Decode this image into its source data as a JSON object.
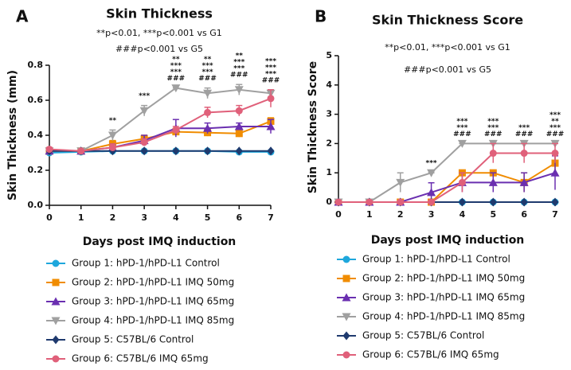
{
  "chart_data": [
    {
      "type": "line",
      "panel_label": "A",
      "title": "Skin Thickness",
      "subtitle_lines": [
        "**p<0.01, ***p<0.001 vs G1",
        "###p<0.001 vs G5"
      ],
      "xlabel": "Days post IMQ induction",
      "ylabel": "Skin Thickness (mm)",
      "x": [
        0,
        1,
        2,
        3,
        4,
        5,
        6,
        7
      ],
      "xlim": [
        0,
        7
      ],
      "xticks": [
        0,
        1,
        2,
        3,
        4,
        5,
        6,
        7
      ],
      "ylim": [
        0,
        0.8
      ],
      "yticks": [
        {
          "value": 0,
          "label": "0.0"
        },
        0.2,
        0.4,
        0.6,
        0.8
      ],
      "series": [
        {
          "name": "Group 1: hPD-1/hPD-L1 Control",
          "color": "#1ea7dc",
          "marker": "circle",
          "values": [
            0.3,
            0.305,
            0.31,
            0.31,
            0.31,
            0.31,
            0.305,
            0.305
          ],
          "errors": [
            0,
            0,
            0,
            0,
            0,
            0,
            0,
            0
          ]
        },
        {
          "name": "Group 2: hPD-1/hPD-L1 IMQ 50mg",
          "color": "#f08c00",
          "marker": "square",
          "values": [
            0.31,
            0.31,
            0.35,
            0.38,
            0.42,
            0.415,
            0.41,
            0.48
          ],
          "errors": [
            0,
            0,
            0.02,
            0.02,
            0.02,
            0.02,
            0.02,
            0.02
          ]
        },
        {
          "name": "Group 3: hPD-1/hPD-L1 IMQ 65mg",
          "color": "#6a2fb0",
          "marker": "triangle",
          "values": [
            0.31,
            0.31,
            0.33,
            0.37,
            0.44,
            0.44,
            0.45,
            0.45
          ],
          "errors": [
            0,
            0,
            0.02,
            0.03,
            0.05,
            0.03,
            0.02,
            0.04
          ]
        },
        {
          "name": "Group 4: hPD-1/hPD-L1 IMQ 85mg",
          "color": "#a0a0a0",
          "marker": "triangle-down",
          "values": [
            0.31,
            0.31,
            0.4,
            0.54,
            0.67,
            0.64,
            0.66,
            0.64
          ],
          "errors": [
            0,
            0,
            0.03,
            0.03,
            0,
            0.03,
            0.03,
            0.02
          ]
        },
        {
          "name": "Group 5: C57BL/6 Control",
          "color": "#1f3a6e",
          "marker": "diamond",
          "values": [
            0.31,
            0.31,
            0.31,
            0.31,
            0.31,
            0.31,
            0.31,
            0.31
          ],
          "errors": [
            0,
            0,
            0,
            0,
            0,
            0,
            0,
            0
          ]
        },
        {
          "name": "Group 6: C57BL/6 IMQ 65mg",
          "color": "#e0607a",
          "marker": "circle",
          "values": [
            0.32,
            0.31,
            0.33,
            0.36,
            0.43,
            0.53,
            0.54,
            0.61
          ],
          "errors": [
            0.01,
            0,
            0.02,
            0.02,
            0.02,
            0.03,
            0.03,
            0.05
          ]
        }
      ],
      "annotations": [
        {
          "x": 2,
          "text": "**",
          "color": "#a0a0a0"
        },
        {
          "x": 3,
          "text": "***",
          "color": "#a0a0a0"
        },
        {
          "x": 4,
          "text": "**",
          "color": "#f08c00"
        },
        {
          "x": 4,
          "text": "***",
          "color": "#6a2fb0"
        },
        {
          "x": 4,
          "text": "***",
          "color": "#a0a0a0"
        },
        {
          "x": 4,
          "text": "###",
          "color": "#e0607a"
        },
        {
          "x": 5,
          "text": "**",
          "color": "#f08c00"
        },
        {
          "x": 5,
          "text": "***",
          "color": "#6a2fb0"
        },
        {
          "x": 5,
          "text": "***",
          "color": "#a0a0a0"
        },
        {
          "x": 5,
          "text": "###",
          "color": "#e0607a"
        },
        {
          "x": 6,
          "text": "**",
          "color": "#f08c00"
        },
        {
          "x": 6,
          "text": "***",
          "color": "#6a2fb0"
        },
        {
          "x": 6,
          "text": "***",
          "color": "#a0a0a0"
        },
        {
          "x": 6,
          "text": "###",
          "color": "#e0607a"
        },
        {
          "x": 7,
          "text": "***",
          "color": "#f08c00"
        },
        {
          "x": 7,
          "text": "***",
          "color": "#6a2fb0"
        },
        {
          "x": 7,
          "text": "***",
          "color": "#a0a0a0"
        },
        {
          "x": 7,
          "text": "###",
          "color": "#e0607a"
        }
      ]
    },
    {
      "type": "line",
      "panel_label": "B",
      "title": "Skin Thickness Score",
      "subtitle_lines": [
        "**p<0.01, ***p<0.001 vs G1",
        "###p<0.001 vs G5"
      ],
      "xlabel": "Days post IMQ induction",
      "ylabel": "Skin Thickness Score",
      "x": [
        0,
        1,
        2,
        3,
        4,
        5,
        6,
        7
      ],
      "xlim": [
        0,
        7
      ],
      "xticks": [
        0,
        1,
        2,
        3,
        4,
        5,
        6,
        7
      ],
      "ylim": [
        0,
        5
      ],
      "yticks": [
        0,
        1,
        2,
        3,
        4,
        5
      ],
      "series": [
        {
          "name": "Group 1: hPD-1/hPD-L1 Control",
          "color": "#1ea7dc",
          "marker": "circle",
          "values": [
            0,
            0,
            0,
            0,
            0,
            0,
            0,
            0
          ],
          "errors": [
            0,
            0,
            0,
            0,
            0,
            0,
            0,
            0
          ]
        },
        {
          "name": "Group 2: hPD-1/hPD-L1 IMQ 50mg",
          "color": "#f08c00",
          "marker": "square",
          "values": [
            0,
            0,
            0,
            0,
            1,
            1,
            0.67,
            1.33
          ],
          "errors": [
            0,
            0,
            0,
            0,
            0,
            0,
            0.33,
            0.33
          ]
        },
        {
          "name": "Group 3: hPD-1/hPD-L1 IMQ 65mg",
          "color": "#6a2fb0",
          "marker": "triangle",
          "values": [
            0,
            0,
            0,
            0.33,
            0.67,
            0.67,
            0.67,
            1
          ],
          "errors": [
            0,
            0,
            0,
            0.33,
            0.33,
            0.33,
            0.33,
            0.58
          ]
        },
        {
          "name": "Group 4: hPD-1/hPD-L1 IMQ 85mg",
          "color": "#a0a0a0",
          "marker": "triangle-down",
          "values": [
            0,
            0,
            0.67,
            1,
            2,
            2,
            2,
            2
          ],
          "errors": [
            0,
            0,
            0.33,
            0,
            0,
            0,
            0,
            0
          ]
        },
        {
          "name": "Group 5: C57BL/6 Control",
          "color": "#1f3a6e",
          "marker": "diamond",
          "values": [
            0,
            0,
            0,
            0,
            0,
            0,
            0,
            0
          ],
          "errors": [
            0,
            0,
            0,
            0,
            0,
            0,
            0,
            0
          ]
        },
        {
          "name": "Group 6: C57BL/6 IMQ 65mg",
          "color": "#e0607a",
          "marker": "circle",
          "values": [
            0,
            0,
            0,
            0,
            0.67,
            1.67,
            1.67,
            1.67
          ],
          "errors": [
            0,
            0,
            0,
            0,
            0.33,
            0.33,
            0.33,
            0.33
          ]
        }
      ],
      "annotations": [
        {
          "x": 3,
          "text": "***",
          "color": "#a0a0a0"
        },
        {
          "x": 4,
          "text": "***",
          "color": "#f08c00"
        },
        {
          "x": 4,
          "text": "***",
          "color": "#a0a0a0"
        },
        {
          "x": 4,
          "text": "###",
          "color": "#e0607a"
        },
        {
          "x": 5,
          "text": "***",
          "color": "#f08c00"
        },
        {
          "x": 5,
          "text": "***",
          "color": "#a0a0a0"
        },
        {
          "x": 5,
          "text": "###",
          "color": "#e0607a"
        },
        {
          "x": 6,
          "text": "***",
          "color": "#a0a0a0"
        },
        {
          "x": 6,
          "text": "###",
          "color": "#e0607a"
        },
        {
          "x": 7,
          "text": "***",
          "color": "#f08c00"
        },
        {
          "x": 7,
          "text": "**",
          "color": "#6a2fb0"
        },
        {
          "x": 7,
          "text": "***",
          "color": "#a0a0a0"
        },
        {
          "x": 7,
          "text": "###",
          "color": "#e0607a"
        }
      ]
    }
  ]
}
